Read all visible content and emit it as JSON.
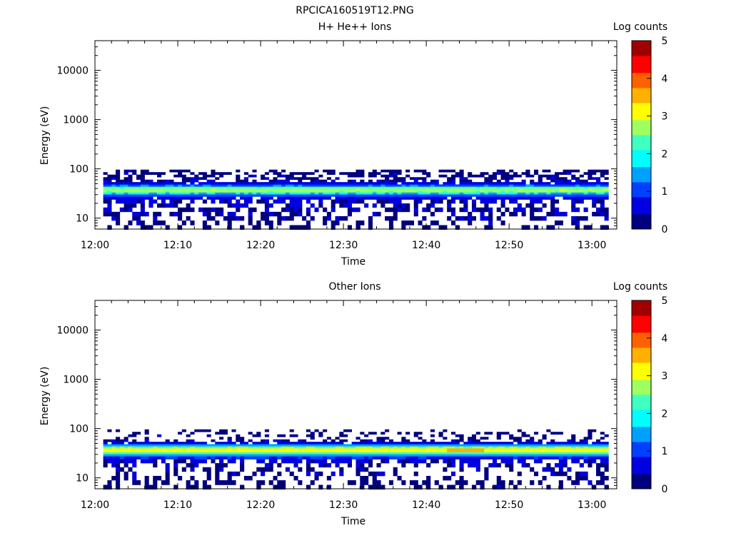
{
  "figure": {
    "title": "RPCICA160519T12.PNG"
  },
  "colorbar_palette": [
    "#00007f",
    "#0000e0",
    "#0040ff",
    "#00a0ff",
    "#00ffff",
    "#40ffc0",
    "#a0ff60",
    "#ffff00",
    "#ffb000",
    "#ff6000",
    "#ff0000",
    "#a00000"
  ],
  "chart_data": [
    {
      "type": "heatmap",
      "title": "H+ He++ Ions",
      "xlabel": "Time",
      "ylabel": "Energy (eV)",
      "x_ticks": [
        "12:00",
        "12:10",
        "12:20",
        "12:30",
        "12:40",
        "12:50",
        "13:00"
      ],
      "x_range": [
        "12:00",
        "13:03"
      ],
      "y_scale": "log",
      "y_range": [
        6,
        40000
      ],
      "y_ticks": [
        "10",
        "100",
        "1000",
        "10000"
      ],
      "colorbar": {
        "label": "Log counts",
        "range": [
          0,
          5
        ],
        "ticks": [
          "0",
          "1",
          "2",
          "3",
          "4",
          "5"
        ]
      },
      "data_extent": {
        "time_start": "12:01",
        "time_end": "13:02",
        "energy_min_eV": 6,
        "energy_max_eV": 95
      },
      "energy_profile": [
        {
          "energy_eV": 6.5,
          "log_counts": 0.3,
          "fill_fraction": 0.35
        },
        {
          "energy_eV": 8,
          "log_counts": 0.3,
          "fill_fraction": 0.4
        },
        {
          "energy_eV": 10,
          "log_counts": 0.35,
          "fill_fraction": 0.4
        },
        {
          "energy_eV": 12,
          "log_counts": 0.35,
          "fill_fraction": 0.45
        },
        {
          "energy_eV": 15,
          "log_counts": 0.4,
          "fill_fraction": 0.5
        },
        {
          "energy_eV": 18,
          "log_counts": 0.4,
          "fill_fraction": 0.5
        },
        {
          "energy_eV": 22,
          "log_counts": 0.45,
          "fill_fraction": 0.6
        },
        {
          "energy_eV": 26,
          "log_counts": 0.6,
          "fill_fraction": 0.9
        },
        {
          "energy_eV": 29,
          "log_counts": 1.0,
          "fill_fraction": 1.0
        },
        {
          "energy_eV": 32,
          "log_counts": 1.7,
          "fill_fraction": 1.0
        },
        {
          "energy_eV": 35,
          "log_counts": 2.6,
          "fill_fraction": 1.0
        },
        {
          "energy_eV": 38,
          "log_counts": 2.8,
          "fill_fraction": 1.0
        },
        {
          "energy_eV": 42,
          "log_counts": 2.2,
          "fill_fraction": 1.0
        },
        {
          "energy_eV": 46,
          "log_counts": 1.2,
          "fill_fraction": 1.0
        },
        {
          "energy_eV": 51,
          "log_counts": 0.7,
          "fill_fraction": 0.95
        },
        {
          "energy_eV": 57,
          "log_counts": 0.4,
          "fill_fraction": 0.6
        },
        {
          "energy_eV": 64,
          "log_counts": 0.35,
          "fill_fraction": 0.5
        },
        {
          "energy_eV": 72,
          "log_counts": 0.3,
          "fill_fraction": 0.5
        },
        {
          "energy_eV": 81,
          "log_counts": 0.3,
          "fill_fraction": 0.45
        },
        {
          "energy_eV": 91,
          "log_counts": 0.3,
          "fill_fraction": 0.5
        }
      ]
    },
    {
      "type": "heatmap",
      "title": "Other Ions",
      "xlabel": "Time",
      "ylabel": "Energy (eV)",
      "x_ticks": [
        "12:00",
        "12:10",
        "12:20",
        "12:30",
        "12:40",
        "12:50",
        "13:00"
      ],
      "x_range": [
        "12:00",
        "13:03"
      ],
      "y_scale": "log",
      "y_range": [
        6,
        40000
      ],
      "y_ticks": [
        "10",
        "100",
        "1000",
        "10000"
      ],
      "colorbar": {
        "label": "Log counts",
        "range": [
          0,
          5
        ],
        "ticks": [
          "0",
          "1",
          "2",
          "3",
          "4",
          "5"
        ]
      },
      "data_extent": {
        "time_start": "12:01",
        "time_end": "13:02",
        "energy_min_eV": 6,
        "energy_max_eV": 95
      },
      "energy_profile": [
        {
          "energy_eV": 6.5,
          "log_counts": 0.3,
          "fill_fraction": 0.3
        },
        {
          "energy_eV": 8,
          "log_counts": 0.3,
          "fill_fraction": 0.35
        },
        {
          "energy_eV": 10,
          "log_counts": 0.3,
          "fill_fraction": 0.35
        },
        {
          "energy_eV": 12,
          "log_counts": 0.35,
          "fill_fraction": 0.3
        },
        {
          "energy_eV": 15,
          "log_counts": 0.35,
          "fill_fraction": 0.35
        },
        {
          "energy_eV": 18,
          "log_counts": 0.4,
          "fill_fraction": 0.4
        },
        {
          "energy_eV": 22,
          "log_counts": 0.5,
          "fill_fraction": 0.7
        },
        {
          "energy_eV": 26,
          "log_counts": 0.8,
          "fill_fraction": 1.0
        },
        {
          "energy_eV": 29,
          "log_counts": 1.4,
          "fill_fraction": 1.0
        },
        {
          "energy_eV": 32,
          "log_counts": 2.3,
          "fill_fraction": 1.0
        },
        {
          "energy_eV": 35,
          "log_counts": 3.1,
          "fill_fraction": 1.0
        },
        {
          "energy_eV": 38,
          "log_counts": 3.2,
          "fill_fraction": 1.0
        },
        {
          "energy_eV": 42,
          "log_counts": 2.5,
          "fill_fraction": 1.0
        },
        {
          "energy_eV": 46,
          "log_counts": 1.4,
          "fill_fraction": 1.0
        },
        {
          "energy_eV": 51,
          "log_counts": 0.6,
          "fill_fraction": 0.85
        },
        {
          "energy_eV": 57,
          "log_counts": 0.35,
          "fill_fraction": 0.45
        },
        {
          "energy_eV": 64,
          "log_counts": 0.3,
          "fill_fraction": 0.3
        },
        {
          "energy_eV": 72,
          "log_counts": 0.3,
          "fill_fraction": 0.3
        },
        {
          "energy_eV": 81,
          "log_counts": 0.3,
          "fill_fraction": 0.25
        },
        {
          "energy_eV": 91,
          "log_counts": 0.3,
          "fill_fraction": 0.2
        }
      ]
    }
  ]
}
